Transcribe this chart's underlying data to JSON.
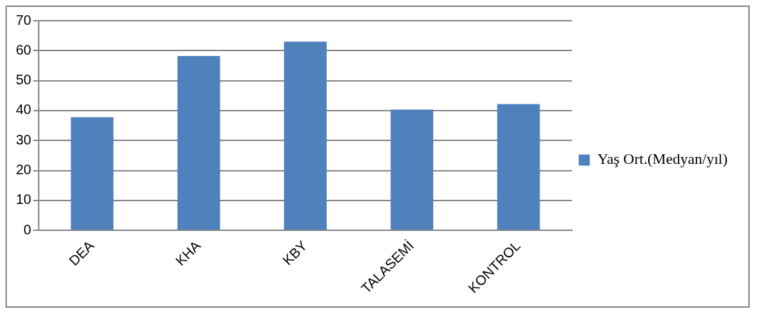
{
  "chart_data": {
    "type": "bar",
    "categories": [
      "DEA",
      "KHA",
      "KBY",
      "TALASEMİ",
      "KONTROL"
    ],
    "series": [
      {
        "name": "Yaş Ort.(Medyan/yıl)",
        "color": "#4f81bd",
        "values": [
          37.8,
          58.2,
          63,
          40.3,
          42.2
        ]
      }
    ],
    "ylim": [
      0,
      70
    ],
    "yticks": [
      0,
      10,
      20,
      30,
      40,
      50,
      60,
      70
    ],
    "grid": "y",
    "legend": "right"
  }
}
